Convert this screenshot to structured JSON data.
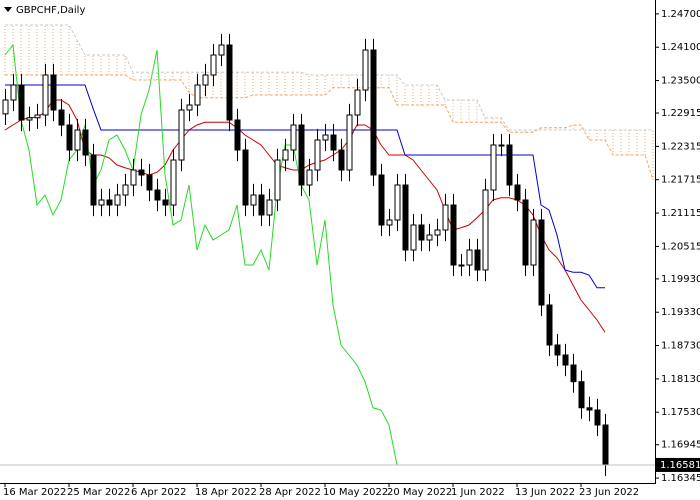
{
  "chart_data": {
    "type": "candlestick",
    "title": "GBPCHF,Daily",
    "categories": [
      "16 Mar 2022",
      null,
      null,
      null,
      null,
      null,
      null,
      null,
      "25 Mar 2022",
      null,
      null,
      null,
      null,
      null,
      null,
      null,
      "6 Apr 2022",
      null,
      null,
      null,
      null,
      null,
      null,
      null,
      "18 Apr 2022",
      null,
      null,
      null,
      null,
      null,
      null,
      null,
      "28 Apr 2022",
      null,
      null,
      null,
      null,
      null,
      null,
      null,
      "10 May 2022",
      null,
      null,
      null,
      null,
      null,
      null,
      null,
      "20 May 2022",
      null,
      null,
      null,
      null,
      null,
      null,
      null,
      "1 Jun 2022",
      null,
      null,
      null,
      null,
      null,
      null,
      null,
      "13 Jun 2022",
      null,
      null,
      null,
      null,
      null,
      null,
      null,
      "23 Jun 2022",
      null,
      null,
      null,
      null,
      null,
      null,
      null,
      null,
      null
    ],
    "open": [
      1.229,
      1.2315,
      1.2342,
      1.2279,
      1.2283,
      1.2288,
      1.236,
      1.2297,
      1.227,
      1.2225,
      1.2261,
      1.2216,
      1.2126,
      1.2135,
      1.2126,
      1.2144,
      1.2162,
      1.2189,
      1.218,
      1.2153,
      1.2135,
      1.2126,
      1.2207,
      1.2297,
      1.2306,
      1.2342,
      1.236,
      1.2396,
      1.2414,
      1.2279,
      1.2225,
      1.2126,
      1.2144,
      1.2108,
      1.2135,
      1.2207,
      1.2225,
      1.227,
      1.2162,
      1.2189,
      1.2243,
      1.2252,
      1.2225,
      1.2189,
      1.2288,
      1.2333,
      1.2405,
      1.218,
      1.209,
      1.2099,
      1.2162,
      1.2045,
      1.209,
      1.2063,
      1.2072,
      1.2081,
      1.2126,
      1.2018,
      1.2018,
      1.2045,
      1.2009,
      1.2153,
      1.2234,
      1.2234,
      1.2162,
      1.2135,
      1.2018,
      1.2099,
      1.1946,
      1.1874,
      1.1856,
      1.1838,
      1.1808,
      1.1761,
      1.1757,
      1.173,
      null,
      null,
      null,
      null,
      null,
      null
    ],
    "high": [
      1.2335,
      1.2362,
      1.2362,
      1.2303,
      1.2308,
      1.238,
      1.238,
      1.2317,
      1.229,
      1.2281,
      1.2281,
      1.2236,
      1.2155,
      1.2155,
      1.2164,
      1.2182,
      1.2209,
      1.2209,
      1.22,
      1.2173,
      1.2155,
      1.2227,
      1.2317,
      1.2326,
      1.2362,
      1.238,
      1.2416,
      1.2434,
      1.2434,
      1.2299,
      1.2245,
      1.2164,
      1.2164,
      1.2155,
      1.2227,
      1.2245,
      1.229,
      1.229,
      1.2209,
      1.2263,
      1.2272,
      1.2272,
      1.2245,
      1.2308,
      1.2353,
      1.2425,
      1.2425,
      1.22,
      1.2119,
      1.2182,
      1.2182,
      1.211,
      1.211,
      1.2092,
      1.2101,
      1.2146,
      1.2146,
      1.2038,
      1.2065,
      1.2065,
      1.2173,
      1.2254,
      1.2254,
      1.2254,
      1.2182,
      1.2155,
      1.2119,
      1.2119,
      1.1966,
      1.1894,
      1.1876,
      1.1858,
      1.1828,
      1.1781,
      1.1777,
      1.175,
      null,
      null,
      null,
      null,
      null,
      null
    ],
    "low": [
      1.227,
      1.2295,
      1.2259,
      1.2259,
      1.2263,
      1.2268,
      1.2277,
      1.225,
      1.2205,
      1.2205,
      1.2196,
      1.2106,
      1.2106,
      1.2106,
      1.2106,
      1.2124,
      1.2142,
      1.216,
      1.2133,
      1.2115,
      1.2106,
      1.2106,
      1.2187,
      1.2277,
      1.2286,
      1.2322,
      1.234,
      1.2376,
      1.2259,
      1.2205,
      1.2106,
      1.2106,
      1.2088,
      1.2088,
      1.2115,
      1.2187,
      1.2205,
      1.2142,
      1.2142,
      1.2169,
      1.2223,
      1.2205,
      1.2169,
      1.2169,
      1.2268,
      1.2313,
      1.216,
      1.207,
      1.207,
      1.2079,
      1.2025,
      1.2025,
      1.2043,
      1.2043,
      1.2052,
      1.2061,
      1.1998,
      1.1998,
      1.1998,
      1.1989,
      1.1989,
      1.2133,
      1.2214,
      1.2142,
      1.2115,
      1.1998,
      1.1998,
      1.1926,
      1.1854,
      1.1836,
      1.1818,
      1.1788,
      1.1741,
      1.1737,
      1.171,
      1.1638,
      null,
      null,
      null,
      null,
      null,
      null
    ],
    "close": [
      1.2315,
      1.2342,
      1.2279,
      1.2283,
      1.2288,
      1.236,
      1.2297,
      1.227,
      1.2225,
      1.2261,
      1.2216,
      1.2126,
      1.2135,
      1.2126,
      1.2144,
      1.2162,
      1.2189,
      1.218,
      1.2153,
      1.2135,
      1.2126,
      1.2207,
      1.2297,
      1.2306,
      1.2342,
      1.236,
      1.2396,
      1.2414,
      1.2279,
      1.2225,
      1.2126,
      1.2144,
      1.2108,
      1.2135,
      1.2207,
      1.2225,
      1.227,
      1.2162,
      1.2189,
      1.2243,
      1.2252,
      1.2225,
      1.2189,
      1.2288,
      1.2333,
      1.2405,
      1.218,
      1.209,
      1.2099,
      1.2162,
      1.2045,
      1.209,
      1.2063,
      1.2072,
      1.2081,
      1.2126,
      1.2018,
      1.2018,
      1.2045,
      1.2009,
      1.2153,
      1.2234,
      1.2234,
      1.2162,
      1.2135,
      1.2018,
      1.2099,
      1.1946,
      1.1874,
      1.1856,
      1.1838,
      1.1808,
      1.1761,
      1.1757,
      1.173,
      1.16581,
      null,
      null,
      null,
      null,
      null,
      null
    ],
    "series": [
      {
        "color": "#cc0000",
        "style": "solid",
        "values": [
          1.2261,
          1.227,
          1.2279,
          1.2283,
          1.2284,
          1.2293,
          1.2315,
          1.2315,
          1.2306,
          1.2279,
          1.2225,
          1.2216,
          1.2216,
          1.2211,
          1.2198,
          1.2193,
          1.2189,
          1.2185,
          1.218,
          1.2185,
          1.2198,
          1.2225,
          1.2243,
          1.2261,
          1.227,
          1.2275,
          1.2275,
          1.2275,
          1.2275,
          1.2265,
          1.2252,
          1.2243,
          1.2234,
          1.2216,
          1.2198,
          1.2193,
          1.2189,
          1.2189,
          1.2198,
          1.2203,
          1.2207,
          1.2216,
          1.2225,
          1.2243,
          1.227,
          1.227,
          1.2261,
          1.2234,
          1.2216,
          1.2216,
          1.2216,
          1.2207,
          1.2189,
          1.2171,
          1.2153,
          1.2117,
          1.2081,
          1.2085,
          1.209,
          1.2103,
          1.2117,
          1.2135,
          1.2139,
          1.2139,
          1.2135,
          1.2126,
          1.2108,
          1.2072,
          1.2045,
          1.2031,
          1.2009,
          1.1982,
          1.1955,
          1.1937,
          1.1919,
          1.1897,
          null,
          null,
          null,
          null,
          null,
          null
        ]
      },
      {
        "color": "#0000cc",
        "style": "solid",
        "values": [
          1.2342,
          1.2342,
          1.2342,
          1.2342,
          1.2342,
          1.2342,
          1.2342,
          1.2342,
          1.2342,
          1.2342,
          1.2342,
          1.23,
          1.2261,
          1.2261,
          1.2261,
          1.2261,
          1.2261,
          1.2261,
          1.2261,
          1.2261,
          1.2261,
          1.2261,
          1.2261,
          1.2261,
          1.2261,
          1.2261,
          1.2261,
          1.2261,
          1.2261,
          1.2261,
          1.2261,
          1.2261,
          1.2261,
          1.2261,
          1.2261,
          1.2261,
          1.2261,
          1.2261,
          1.2261,
          1.2261,
          1.2261,
          1.2261,
          1.2261,
          1.2261,
          1.2261,
          1.2261,
          1.2261,
          1.2261,
          1.2261,
          1.2261,
          1.2216,
          1.2216,
          1.2216,
          1.2216,
          1.2216,
          1.2216,
          1.2216,
          1.2216,
          1.2216,
          1.2216,
          1.2216,
          1.2216,
          1.2216,
          1.2216,
          1.2216,
          1.2216,
          1.2216,
          1.2126,
          1.2117,
          1.2072,
          1.2009,
          1.2005,
          1.2005,
          1.2,
          1.1977,
          1.1977,
          null,
          null,
          null,
          null,
          null,
          null
        ]
      },
      {
        "color": "#22dd22",
        "style": "solid",
        "values": [
          1.2396,
          1.2414,
          1.2279,
          1.2225,
          1.2126,
          1.2144,
          1.2108,
          1.2135,
          1.2207,
          1.2225,
          1.227,
          1.2162,
          1.2189,
          1.2243,
          1.2252,
          1.2225,
          1.2189,
          1.2288,
          1.2333,
          1.2405,
          1.218,
          1.209,
          1.2099,
          1.2162,
          1.2045,
          1.209,
          1.2063,
          1.2072,
          1.2081,
          1.2126,
          1.2018,
          1.2018,
          1.2045,
          1.2009,
          1.2153,
          1.2234,
          1.2234,
          1.2162,
          1.2135,
          1.2018,
          1.2099,
          1.1946,
          1.1874,
          1.1856,
          1.1838,
          1.1808,
          1.1761,
          1.1757,
          1.173,
          1.16581,
          null,
          null,
          null,
          null,
          null,
          null,
          null,
          null,
          null,
          null,
          null,
          null,
          null,
          null,
          null,
          null,
          null,
          null,
          null,
          null,
          null,
          null,
          null,
          null,
          null,
          null,
          null,
          null,
          null,
          null,
          null,
          null
        ]
      },
      {
        "color": "#f4a460",
        "style": "dotted",
        "values": [
          1.236,
          1.236,
          1.236,
          1.236,
          1.236,
          1.236,
          1.236,
          1.236,
          1.236,
          1.236,
          1.236,
          1.236,
          1.236,
          1.236,
          1.236,
          1.236,
          1.2351,
          1.2351,
          1.2351,
          1.2351,
          1.2351,
          1.2351,
          1.2351,
          1.2329,
          1.2319,
          1.2319,
          1.2319,
          1.2319,
          1.2319,
          1.2319,
          1.2319,
          1.2324,
          1.2324,
          1.2324,
          1.2324,
          1.2324,
          1.2324,
          1.2324,
          1.2324,
          1.2324,
          1.2324,
          1.2337,
          1.2337,
          1.2337,
          1.2337,
          1.2337,
          1.2337,
          1.2337,
          1.2337,
          1.2306,
          1.2306,
          1.2306,
          1.2306,
          1.2306,
          1.2306,
          1.2306,
          1.2275,
          1.2275,
          1.2275,
          1.2275,
          1.2275,
          1.2275,
          1.2275,
          1.2257,
          1.2257,
          1.2257,
          1.2257,
          1.2265,
          1.2265,
          1.2265,
          1.2265,
          1.227,
          1.227,
          1.2243,
          1.2243,
          1.2243,
          1.2216,
          1.2216,
          1.2216,
          1.2216,
          1.2216,
          1.2171
        ]
      },
      {
        "color": "#c8c8c8",
        "style": "dotted",
        "values": [
          1.245,
          1.245,
          1.245,
          1.245,
          1.245,
          1.245,
          1.245,
          1.245,
          1.245,
          1.2423,
          1.2396,
          1.2396,
          1.2396,
          1.2396,
          1.2396,
          1.2396,
          1.2365,
          1.2365,
          1.2365,
          1.2365,
          1.2365,
          1.2365,
          1.2365,
          1.2365,
          1.2365,
          1.2365,
          1.2365,
          1.2365,
          1.2365,
          1.2365,
          1.2365,
          1.2365,
          1.2365,
          1.2365,
          1.2365,
          1.2365,
          1.2365,
          1.2365,
          1.236,
          1.236,
          1.236,
          1.236,
          1.236,
          1.236,
          1.236,
          1.236,
          1.236,
          1.236,
          1.236,
          1.236,
          1.2342,
          1.2342,
          1.2342,
          1.2342,
          1.2342,
          1.2315,
          1.2315,
          1.2315,
          1.2315,
          1.2315,
          1.2283,
          1.2283,
          1.2283,
          1.2261,
          1.2261,
          1.2261,
          1.2261,
          1.2261,
          1.2261,
          1.2261,
          1.2261,
          1.2261,
          1.2261,
          1.2261,
          1.2261,
          1.2261,
          1.2261,
          1.2261,
          1.2261,
          1.2261,
          1.2261,
          1.2261
        ]
      }
    ],
    "ylim": [
      1.16256,
      1.2495
    ],
    "yticks": [
      {
        "value": 1.247,
        "label": "1.24700"
      },
      {
        "value": 1.241,
        "label": "1.24100"
      },
      {
        "value": 1.235,
        "label": "1.23500"
      },
      1.22915,
      1.22315,
      1.21715,
      1.21115,
      1.20515,
      {
        "value": 1.1993,
        "label": "1.19930"
      },
      {
        "value": 1.1933,
        "label": "1.19330"
      },
      {
        "value": 1.1873,
        "label": "1.18730"
      },
      {
        "value": 1.1813,
        "label": "1.18130"
      },
      {
        "value": 1.1753,
        "label": "1.17530"
      },
      1.16945,
      1.16345
    ],
    "last_price": 1.16581,
    "grid": false,
    "bull_color": "#ffffff",
    "bear_color": "#000000"
  }
}
